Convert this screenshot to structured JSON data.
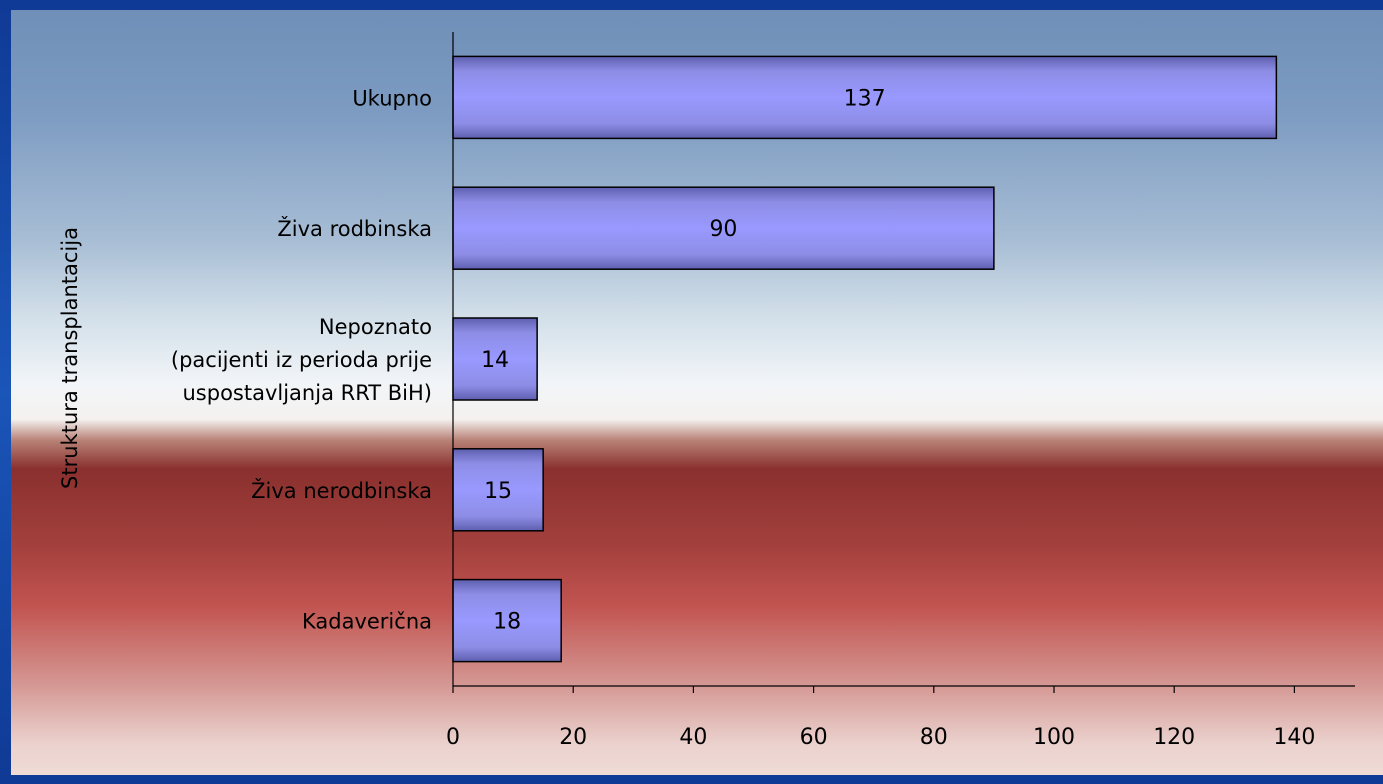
{
  "chart_data": {
    "type": "bar",
    "orientation": "horizontal",
    "title": "",
    "xlabel": "",
    "ylabel": "Struktura transplantacija",
    "categories": [
      "Ukupno",
      "Živa rodbinska",
      "Nepoznato (pacijenti iz perioda prije uspostavljanja RRT BiH)",
      "Živa nerodbinska",
      "Kadaverična"
    ],
    "category_lines": [
      [
        "Ukupno"
      ],
      [
        "Živa rodbinska"
      ],
      [
        "Nepoznato",
        "(pacijenti iz perioda prije",
        "uspostavljanja RRT BiH)"
      ],
      [
        "Živa nerodbinska"
      ],
      [
        "Kadaverična"
      ]
    ],
    "values": [
      137,
      90,
      14,
      15,
      18
    ],
    "data_labels": [
      "137",
      "90",
      "14",
      "15",
      "18"
    ],
    "xlim": [
      0,
      150
    ],
    "xticks": [
      0,
      20,
      40,
      60,
      80,
      100,
      120,
      140
    ],
    "xtick_labels": [
      "0",
      "20",
      "40",
      "60",
      "80",
      "100",
      "120",
      "140"
    ],
    "grid": false,
    "legend": "none",
    "colors": {
      "bar_fill": "#9999ff",
      "bar_stroke": "#000000",
      "axis": "#000000",
      "text": "#000000"
    }
  }
}
